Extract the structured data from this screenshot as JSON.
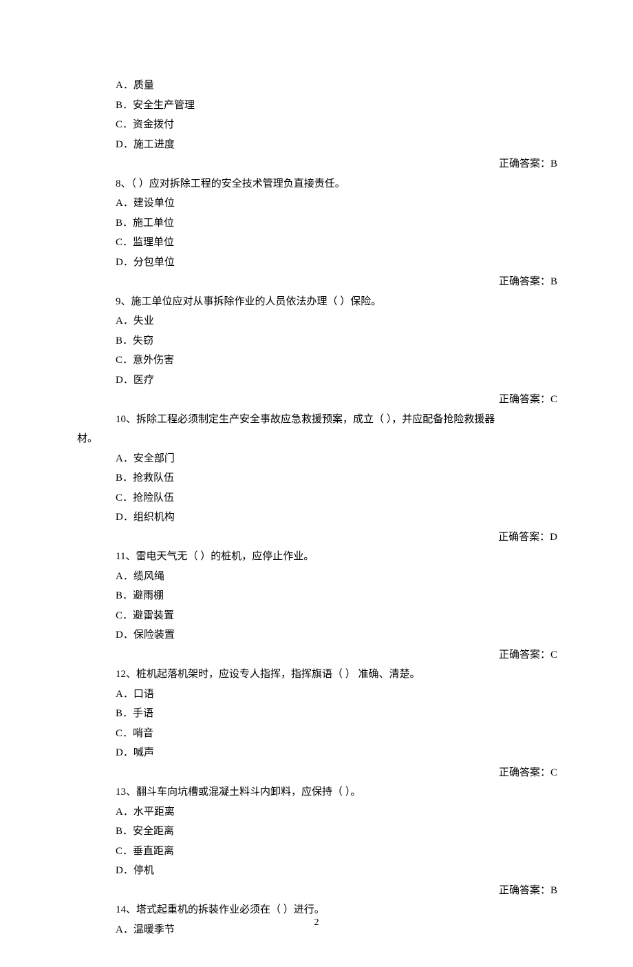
{
  "answer_prefix": "正确答案：",
  "page_number": "2",
  "q7_tail": {
    "options": [
      {
        "letter": "A．",
        "text": "质量"
      },
      {
        "letter": "B．",
        "text": "安全生产管理"
      },
      {
        "letter": "C．",
        "text": "资金拨付"
      },
      {
        "letter": "D．",
        "text": "施工进度"
      }
    ],
    "answer": "B"
  },
  "questions": [
    {
      "stem": "8、（  ）应对拆除工程的安全技术管理负直接责任。",
      "options": [
        {
          "letter": "A．",
          "text": "建设单位"
        },
        {
          "letter": "B．",
          "text": "施工单位"
        },
        {
          "letter": "C．",
          "text": "监理单位"
        },
        {
          "letter": "D．",
          "text": "分包单位"
        }
      ],
      "answer": "B"
    },
    {
      "stem": "9、施工单位应对从事拆除作业的人员依法办理（  ）保险。",
      "options": [
        {
          "letter": "A．",
          "text": "失业"
        },
        {
          "letter": "B．",
          "text": "失窃"
        },
        {
          "letter": "C．",
          "text": "意外伤害"
        },
        {
          "letter": "D．",
          "text": "医疗"
        }
      ],
      "answer": "C"
    },
    {
      "stem": "10、拆除工程必须制定生产安全事故应急救援预案，成立（  ），并应配备抢险救援器",
      "stem_cont": "材。",
      "options": [
        {
          "letter": "A．",
          "text": "安全部门"
        },
        {
          "letter": "B．",
          "text": "抢救队伍"
        },
        {
          "letter": "C．",
          "text": "抢险队伍"
        },
        {
          "letter": "D．",
          "text": "组织机构"
        }
      ],
      "answer": "D"
    },
    {
      "stem": "11、雷电天气无（  ）的桩机，应停止作业。",
      "options": [
        {
          "letter": "A．",
          "text": "缆风绳"
        },
        {
          "letter": "B．",
          "text": "避雨棚"
        },
        {
          "letter": "C．",
          "text": "避雷装置"
        },
        {
          "letter": "D．",
          "text": "保险装置"
        }
      ],
      "answer": "C"
    },
    {
      "stem": "12、桩机起落机架时，应设专人指挥，指挥旗语（  ） 准确、清楚。",
      "options": [
        {
          "letter": "A．",
          "text": "口语"
        },
        {
          "letter": "B．",
          "text": "手语"
        },
        {
          "letter": "C．",
          "text": "哨音"
        },
        {
          "letter": "D．",
          "text": "喊声"
        }
      ],
      "answer": "C"
    },
    {
      "stem": "13、翻斗车向坑槽或混凝土料斗内卸料，应保持（  ）。",
      "options": [
        {
          "letter": "A．",
          "text": "水平距离"
        },
        {
          "letter": "B．",
          "text": "安全距离"
        },
        {
          "letter": "C．",
          "text": "垂直距离"
        },
        {
          "letter": "D．",
          "text": "停机"
        }
      ],
      "answer": "B"
    },
    {
      "stem": "14、塔式起重机的拆装作业必须在（  ）进行。",
      "options": [
        {
          "letter": "A．",
          "text": "温暖季节"
        }
      ]
    }
  ]
}
